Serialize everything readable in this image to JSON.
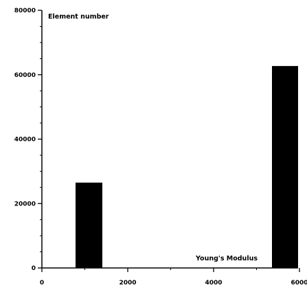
{
  "chart_data": {
    "type": "bar",
    "xlabel": "Young's Modulus",
    "ylabel": "Element number",
    "xlim": [
      0,
      6000
    ],
    "ylim": [
      0,
      80000
    ],
    "x_ticks": [
      0,
      2000,
      4000,
      6000
    ],
    "x_tick_labels": [
      "0",
      "2000",
      "4000",
      "6000"
    ],
    "y_ticks": [
      0,
      20000,
      40000,
      60000,
      80000
    ],
    "y_tick_labels": [
      "0",
      "20000",
      "40000",
      "60000",
      "80000"
    ],
    "bars": [
      {
        "x0": 800,
        "x1": 1400,
        "value": 26500
      },
      {
        "x0": 5400,
        "x1": 6000,
        "value": 62700
      }
    ],
    "grid": false,
    "bar_color": "#000000"
  }
}
